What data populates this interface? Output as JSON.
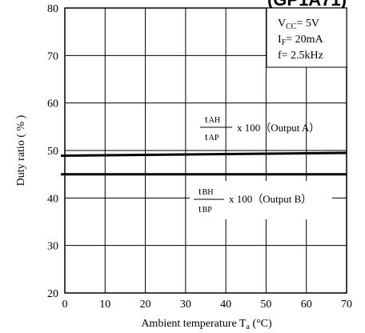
{
  "chart_data": {
    "type": "line",
    "title_fragment": "(GP1A71)",
    "xlabel": "Ambient temperature",
    "xlabel_symbol": "T",
    "xlabel_subscript": "a",
    "xlabel_unit": "(°C)",
    "ylabel": "Duty ratio ( % )",
    "xlim": [
      0,
      70
    ],
    "ylim": [
      20,
      80
    ],
    "x_ticks": [
      0,
      10,
      20,
      30,
      40,
      50,
      60,
      70
    ],
    "y_ticks": [
      20,
      30,
      40,
      50,
      60,
      70,
      80
    ],
    "grid": true,
    "conditions": {
      "vcc": "V",
      "vcc_sub": "CC",
      "vcc_val": "= 5V",
      "if": "I",
      "if_sub": "F",
      "if_val": "= 20mA",
      "f": "f= 2.5kHz"
    },
    "series": [
      {
        "name": "Output A",
        "x": [
          -1,
          70
        ],
        "y": [
          48.9,
          49.5
        ],
        "annot": {
          "num": "t",
          "num_sub": "AH",
          "den": "t",
          "den_sub": "AP",
          "suffix": "x 100（Output A）"
        }
      },
      {
        "name": "Output B",
        "x": [
          -1,
          70
        ],
        "y": [
          45.0,
          45.0
        ],
        "annot": {
          "num": "t",
          "num_sub": "BH",
          "den": "t",
          "den_sub": "BP",
          "suffix": "x 100（Output B）"
        }
      }
    ]
  }
}
